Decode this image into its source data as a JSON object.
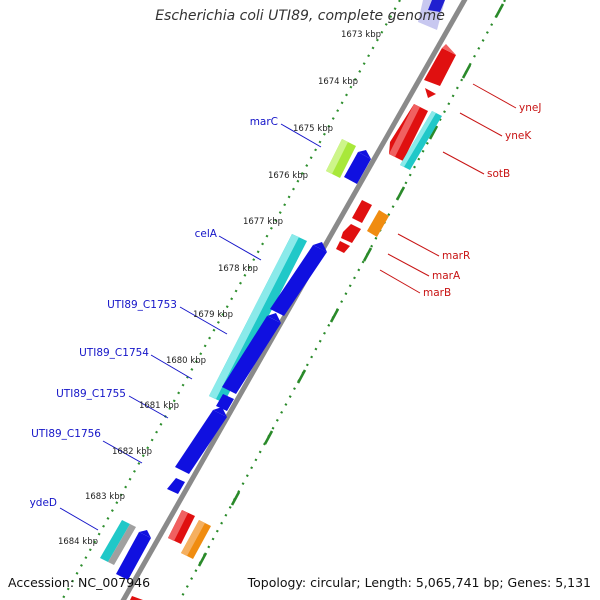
{
  "title": "Escherichia coli UTI89, complete genome",
  "accession": "Accession: NC_007946",
  "topology": "Topology: circular; Length: 5,065,741 bp; Genes: 5,131",
  "colors": {
    "backbone": "#8a8a8a",
    "tick_outer": "#2f8f2f",
    "tick_inner": "#2a8a2a",
    "label_forward": "#1414c8",
    "label_reverse": "#c81414",
    "cds_forward": "#1010e0",
    "cds_reverse": "#e01010",
    "rna_like": "#20c8c8",
    "pale_blue": "#c8c8f0",
    "yellow_green": "#a8e83a",
    "orange": "#f08c10",
    "grey": "#a0a0a0"
  },
  "ticks": [
    {
      "label": "1673 kbp"
    },
    {
      "label": "1674 kbp"
    },
    {
      "label": "1675 kbp"
    },
    {
      "label": "1676 kbp"
    },
    {
      "label": "1677 kbp"
    },
    {
      "label": "1678 kbp"
    },
    {
      "label": "1679 kbp"
    },
    {
      "label": "1680 kbp"
    },
    {
      "label": "1681 kbp"
    },
    {
      "label": "1682 kbp"
    },
    {
      "label": "1683 kbp"
    },
    {
      "label": "1684 kbp"
    }
  ],
  "gene_labels_forward": [
    "marC",
    "celA",
    "UTI89_C1753",
    "UTI89_C1754",
    "UTI89_C1755",
    "UTI89_C1756",
    "ydeD"
  ],
  "gene_labels_reverse": [
    "yneJ",
    "yneK",
    "sotB",
    "marR",
    "marA",
    "marB"
  ]
}
